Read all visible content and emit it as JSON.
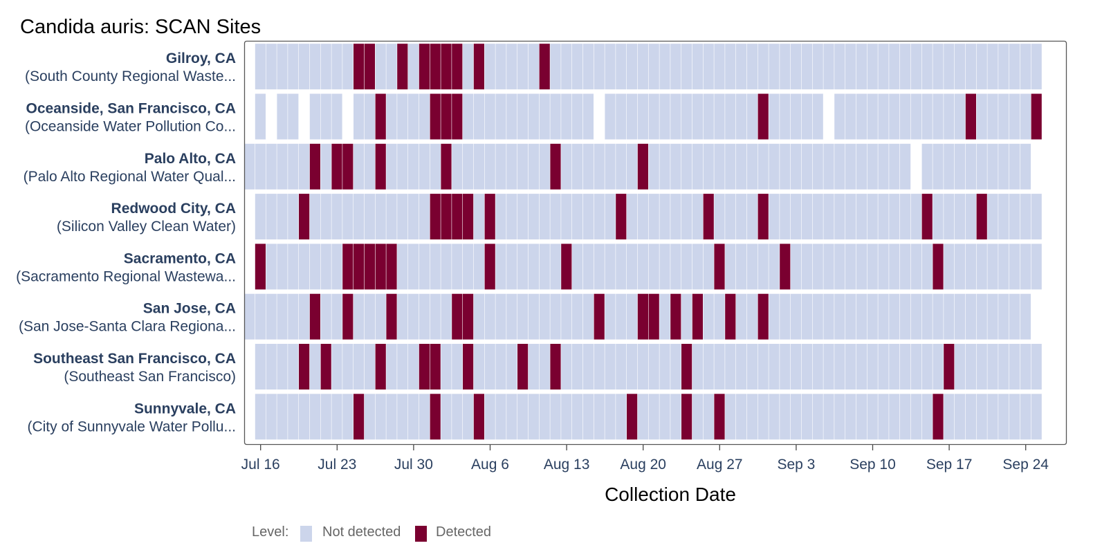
{
  "chart_data": {
    "type": "heatmap",
    "title": "Candida auris: SCAN Sites",
    "xlabel": "Collection Date",
    "ylabel": "",
    "x_tick_labels": [
      "Jul 16",
      "Jul 23",
      "Jul 30",
      "Aug 6",
      "Aug 13",
      "Aug 20",
      "Aug 27",
      "Sep 3",
      "Sep 10",
      "Sep 17",
      "Sep 24"
    ],
    "xlim": [
      "2023-07-15",
      "2023-09-26"
    ],
    "x_range_dates": [
      "2023-07-15",
      "2023-09-25"
    ],
    "legend": {
      "title": "Level:",
      "position": "bottom-left",
      "items": [
        {
          "label": "Not detected",
          "color": "#ccd5eb"
        },
        {
          "label": "Detected",
          "color": "#7a0030"
        }
      ]
    },
    "sites": [
      {
        "name": "Gilroy, CA",
        "subtitle": "(South County Regional Waste...",
        "not_detected_ranges": [
          [
            "2023-07-16",
            "2023-09-25"
          ]
        ],
        "detected": [
          "2023-07-25",
          "2023-07-26",
          "2023-07-29",
          "2023-07-31",
          "2023-08-01",
          "2023-08-02",
          "2023-08-03",
          "2023-08-05",
          "2023-08-11"
        ]
      },
      {
        "name": "Oceanside, San Francisco, CA",
        "subtitle": "(Oceanside Water Pollution Co...",
        "not_detected_ranges": [
          [
            "2023-07-16",
            "2023-07-16"
          ],
          [
            "2023-07-18",
            "2023-07-19"
          ],
          [
            "2023-07-21",
            "2023-07-23"
          ],
          [
            "2023-07-25",
            "2023-08-15"
          ],
          [
            "2023-08-17",
            "2023-09-05"
          ],
          [
            "2023-09-07",
            "2023-09-25"
          ]
        ],
        "detected": [
          "2023-07-27",
          "2023-08-01",
          "2023-08-02",
          "2023-08-03",
          "2023-08-31",
          "2023-09-19",
          "2023-09-25"
        ]
      },
      {
        "name": "Palo Alto, CA",
        "subtitle": "(Palo Alto Regional Water Qual...",
        "not_detected_ranges": [
          [
            "2023-07-15",
            "2023-09-13"
          ],
          [
            "2023-09-15",
            "2023-09-24"
          ]
        ],
        "detected": [
          "2023-07-21",
          "2023-07-23",
          "2023-07-24",
          "2023-07-27",
          "2023-08-02",
          "2023-08-12",
          "2023-08-20"
        ]
      },
      {
        "name": "Redwood City, CA",
        "subtitle": "(Silicon Valley Clean Water)",
        "not_detected_ranges": [
          [
            "2023-07-16",
            "2023-09-25"
          ]
        ],
        "detected": [
          "2023-07-20",
          "2023-08-01",
          "2023-08-02",
          "2023-08-03",
          "2023-08-04",
          "2023-08-06",
          "2023-08-18",
          "2023-08-26",
          "2023-08-31",
          "2023-09-15",
          "2023-09-20"
        ]
      },
      {
        "name": "Sacramento, CA",
        "subtitle": "(Sacramento Regional Wastewa...",
        "not_detected_ranges": [
          [
            "2023-07-16",
            "2023-09-25"
          ]
        ],
        "detected": [
          "2023-07-16",
          "2023-07-24",
          "2023-07-25",
          "2023-07-26",
          "2023-07-27",
          "2023-07-28",
          "2023-08-06",
          "2023-08-13",
          "2023-08-27",
          "2023-09-02",
          "2023-09-16"
        ]
      },
      {
        "name": "San Jose, CA",
        "subtitle": "(San Jose-Santa Clara Regiona...",
        "not_detected_ranges": [
          [
            "2023-07-15",
            "2023-09-24"
          ]
        ],
        "detected": [
          "2023-07-21",
          "2023-07-24",
          "2023-07-28",
          "2023-08-03",
          "2023-08-04",
          "2023-08-16",
          "2023-08-20",
          "2023-08-21",
          "2023-08-23",
          "2023-08-25",
          "2023-08-28",
          "2023-08-31"
        ]
      },
      {
        "name": "Southeast San Francisco, CA",
        "subtitle": "(Southeast San Francisco)",
        "not_detected_ranges": [
          [
            "2023-07-16",
            "2023-09-25"
          ]
        ],
        "detected": [
          "2023-07-20",
          "2023-07-22",
          "2023-07-27",
          "2023-07-31",
          "2023-08-01",
          "2023-08-04",
          "2023-08-09",
          "2023-08-12",
          "2023-08-24",
          "2023-09-17"
        ]
      },
      {
        "name": "Sunnyvale, CA",
        "subtitle": "(City of Sunnyvale Water Pollu...",
        "not_detected_ranges": [
          [
            "2023-07-16",
            "2023-09-25"
          ]
        ],
        "detected": [
          "2023-07-25",
          "2023-08-01",
          "2023-08-05",
          "2023-08-19",
          "2023-08-24",
          "2023-08-27",
          "2023-09-16"
        ]
      }
    ]
  }
}
